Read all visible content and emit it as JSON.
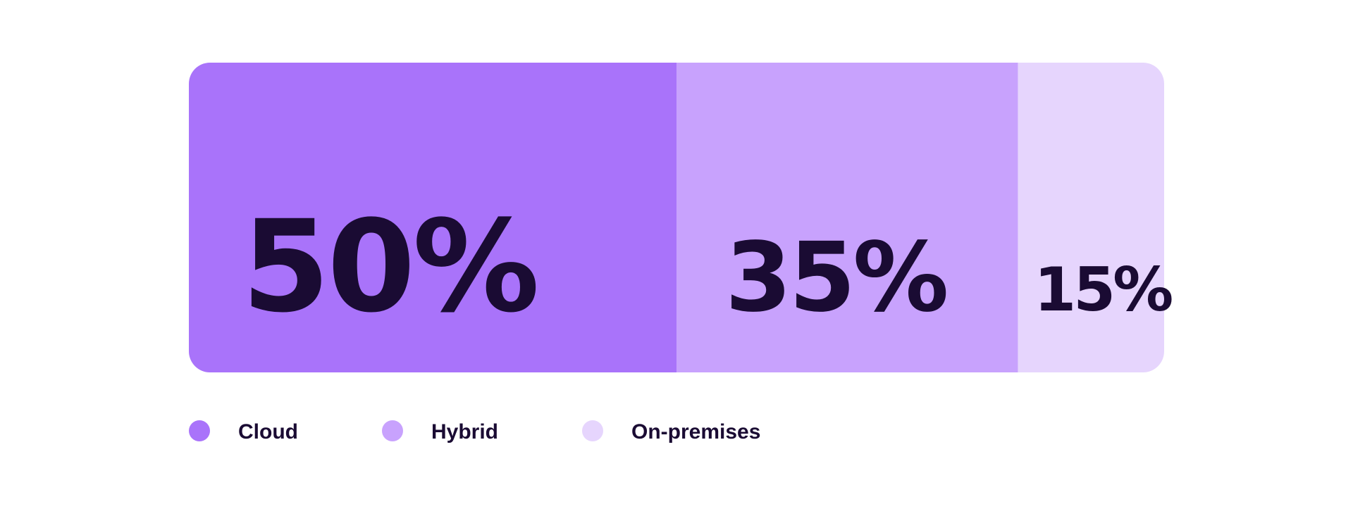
{
  "chart_data": {
    "type": "bar",
    "orientation": "horizontal-stacked-100",
    "categories": [
      "Cloud",
      "Hybrid",
      "On-premises"
    ],
    "values": [
      50,
      35,
      15
    ],
    "labels": [
      "50%",
      "35%",
      "15%"
    ],
    "colors": [
      "#a973fa",
      "#c8a2fd",
      "#e6d5fd"
    ],
    "legend": {
      "placement": "bottom-left",
      "entries": [
        "Cloud",
        "Hybrid",
        "On-premises"
      ]
    },
    "grid": false,
    "xlim": [
      0,
      100
    ]
  }
}
